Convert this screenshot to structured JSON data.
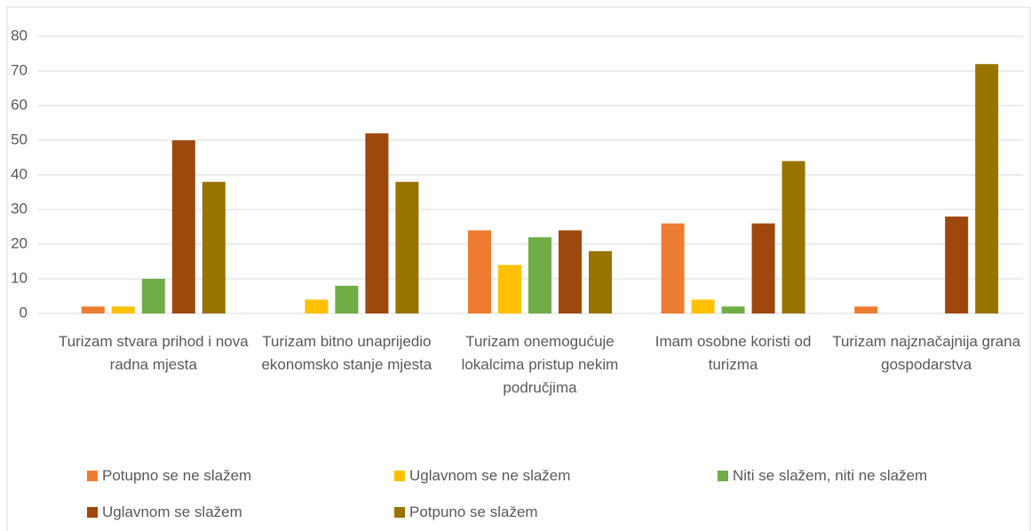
{
  "chart_data": {
    "type": "bar",
    "categories": [
      "Turizam stvara prihod i nova radna mjesta",
      "Turizam bitno unaprijedio ekonomsko stanje mjesta",
      "Turizam onemogućuje lokalcima pristup nekim područjima",
      "Imam osobne koristi od turizma",
      "Turizam najznačajnija grana gospodarstva"
    ],
    "series": [
      {
        "name": "Potupno se ne slažem",
        "color": "#ed7d31",
        "values": [
          2,
          0,
          24,
          26,
          2
        ]
      },
      {
        "name": "Uglavnom se ne slažem",
        "color": "#ffc000",
        "values": [
          2,
          4,
          14,
          4,
          0
        ]
      },
      {
        "name": "Niti se slažem, niti ne slažem",
        "color": "#70ad47",
        "values": [
          10,
          8,
          22,
          2,
          0
        ]
      },
      {
        "name": "Uglavnom se slažem",
        "color": "#9e480e",
        "values": [
          50,
          52,
          24,
          26,
          28
        ]
      },
      {
        "name": "Potpuno se slažem",
        "color": "#997300",
        "values": [
          38,
          38,
          18,
          44,
          72
        ]
      }
    ],
    "ylim": [
      0,
      80
    ],
    "yticks": [
      0,
      10,
      20,
      30,
      40,
      50,
      60,
      70,
      80
    ],
    "grid": true,
    "legend": "bottom"
  }
}
